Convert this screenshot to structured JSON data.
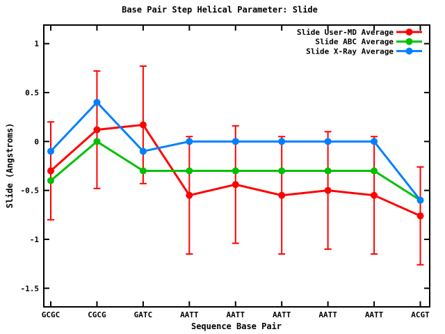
{
  "background": "#ffffff",
  "chart_data": {
    "type": "line",
    "title": "Base Pair Step Helical Parameter: Slide",
    "xlabel": "Sequence Base Pair",
    "ylabel": "Slide (Angstroms)",
    "categories": [
      "GCGC",
      "CGCG",
      "GATC",
      "AATT",
      "AATT",
      "AATT",
      "AATT",
      "AATT",
      "ACGT"
    ],
    "yticks": [
      {
        "v": 1,
        "label": "1"
      },
      {
        "v": 0.5,
        "label": "0.5"
      },
      {
        "v": 0,
        "label": "0"
      },
      {
        "v": -0.5,
        "label": "-0.5"
      },
      {
        "v": -1,
        "label": "-1"
      },
      {
        "v": -1.5,
        "label": "-1.5"
      }
    ],
    "ylim": [
      -1.69,
      1.19
    ],
    "grid": false,
    "legend_position": "top-right-inside",
    "series": [
      {
        "name": "Slide User-MD Average",
        "color": "#ff0000",
        "marker": "circle",
        "values": [
          -0.3,
          0.12,
          0.17,
          -0.55,
          -0.44,
          -0.55,
          -0.5,
          -0.55,
          -0.76
        ],
        "error": [
          0.5,
          0.6,
          0.6,
          0.6,
          0.6,
          0.6,
          0.6,
          0.6,
          0.5
        ]
      },
      {
        "name": "Slide ABC Average",
        "color": "#00c000",
        "marker": "circle",
        "values": [
          -0.4,
          0.0,
          -0.3,
          -0.3,
          -0.3,
          -0.3,
          -0.3,
          -0.3,
          -0.6
        ],
        "error": null
      },
      {
        "name": "Slide X-Ray Average",
        "color": "#0080ff",
        "marker": "circle",
        "values": [
          -0.1,
          0.4,
          -0.1,
          0.0,
          0.0,
          0.0,
          0.0,
          0.0,
          -0.6
        ],
        "error": null
      }
    ]
  }
}
